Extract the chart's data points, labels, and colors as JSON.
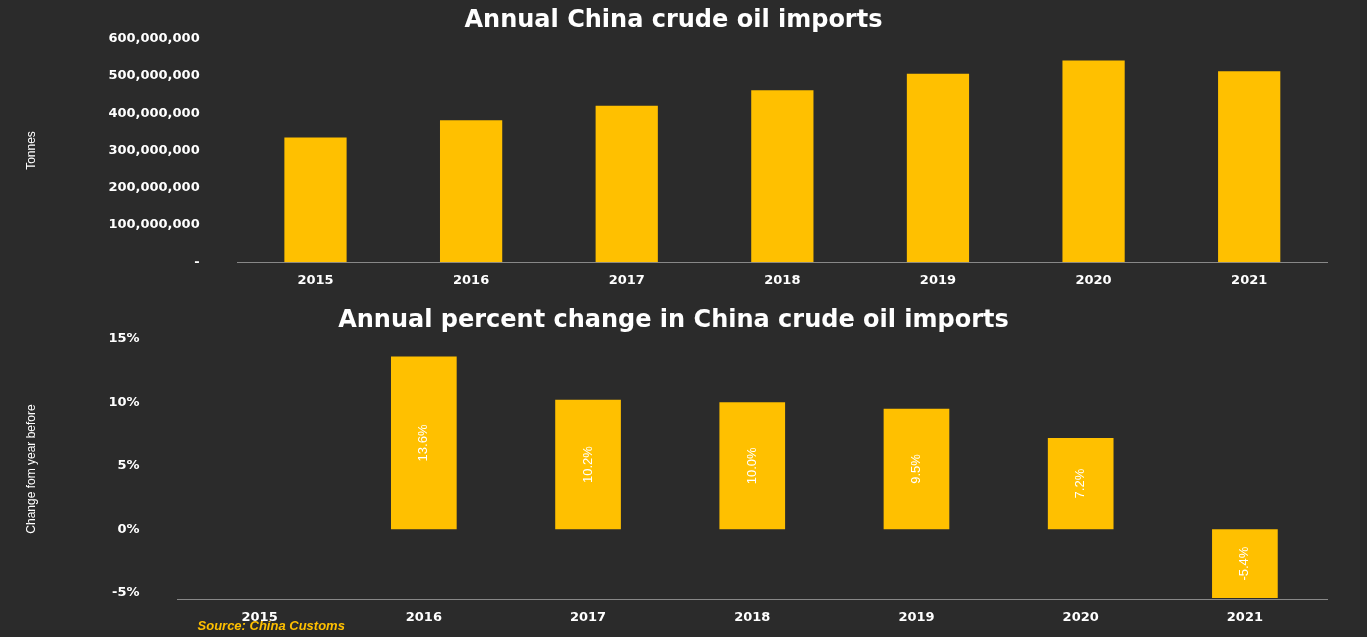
{
  "chart_data": [
    {
      "type": "bar",
      "title": "Annual China crude oil imports",
      "ylabel": "Tonnes",
      "categories": [
        "2015",
        "2016",
        "2017",
        "2018",
        "2019",
        "2020",
        "2021"
      ],
      "values": [
        335000000,
        381000000,
        420000000,
        462000000,
        506000000,
        542000000,
        513000000
      ],
      "color": "#ffc000",
      "ylim": [
        0,
        600000000
      ],
      "yticks": [
        {
          "value": 0,
          "label": "-"
        },
        {
          "value": 100000000,
          "label": "100,000,000"
        },
        {
          "value": 200000000,
          "label": "200,000,000"
        },
        {
          "value": 300000000,
          "label": "300,000,000"
        },
        {
          "value": 400000000,
          "label": "400,000,000"
        },
        {
          "value": 500000000,
          "label": "500,000,000"
        },
        {
          "value": 600000000,
          "label": "600,000,000"
        }
      ]
    },
    {
      "type": "bar",
      "title": "Annual percent change in China crude oil imports",
      "ylabel": "Change fom year before",
      "categories": [
        "2015",
        "2016",
        "2017",
        "2018",
        "2019",
        "2020",
        "2021"
      ],
      "values": [
        null,
        13.6,
        10.2,
        10.0,
        9.5,
        7.2,
        -5.4
      ],
      "value_labels": [
        null,
        "13.6%",
        "10.2%",
        "10.0%",
        "9.5%",
        "7.2%",
        "-5.4%"
      ],
      "color": "#ffc000",
      "ylim": [
        -5.5,
        15
      ],
      "yticks": [
        {
          "value": -5,
          "label": "-5%"
        },
        {
          "value": 0,
          "label": "0%"
        },
        {
          "value": 5,
          "label": "5%"
        },
        {
          "value": 10,
          "label": "10%"
        },
        {
          "value": 15,
          "label": "15%"
        }
      ],
      "annotations": [
        "Source: China Customs"
      ]
    }
  ]
}
